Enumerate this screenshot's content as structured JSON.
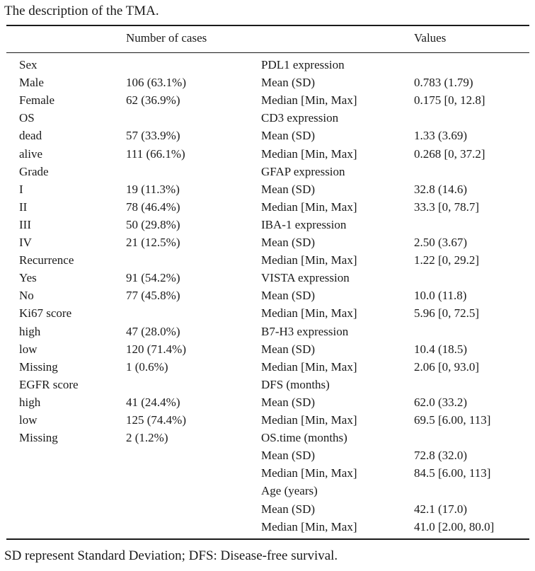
{
  "caption": "The description of the TMA.",
  "header": {
    "col_cases": "Number of cases",
    "col_values": "Values"
  },
  "rows": [
    {
      "label": "Sex",
      "cases": "",
      "label2": "PDL1 expression",
      "value": ""
    },
    {
      "label": "Male",
      "cases": "106 (63.1%)",
      "label2": "Mean (SD)",
      "value": "0.783 (1.79)"
    },
    {
      "label": "Female",
      "cases": "62 (36.9%)",
      "label2": "Median [Min, Max]",
      "value": "0.175 [0, 12.8]"
    },
    {
      "label": "OS",
      "cases": "",
      "label2": "CD3 expression",
      "value": ""
    },
    {
      "label": "dead",
      "cases": "57 (33.9%)",
      "label2": "Mean (SD)",
      "value": "1.33 (3.69)"
    },
    {
      "label": "alive",
      "cases": "111 (66.1%)",
      "label2": "Median [Min, Max]",
      "value": "0.268 [0, 37.2]"
    },
    {
      "label": "Grade",
      "cases": "",
      "label2": "GFAP expression",
      "value": ""
    },
    {
      "label": "I",
      "cases": "19 (11.3%)",
      "label2": "Mean (SD)",
      "value": "32.8 (14.6)"
    },
    {
      "label": "II",
      "cases": "78 (46.4%)",
      "label2": "Median [Min, Max]",
      "value": "33.3 [0, 78.7]"
    },
    {
      "label": "III",
      "cases": "50 (29.8%)",
      "label2": "IBA-1 expression",
      "value": ""
    },
    {
      "label": "IV",
      "cases": "21 (12.5%)",
      "label2": "Mean (SD)",
      "value": "2.50 (3.67)"
    },
    {
      "label": "Recurrence",
      "cases": "",
      "label2": "Median [Min, Max]",
      "value": "1.22 [0, 29.2]"
    },
    {
      "label": "Yes",
      "cases": "91 (54.2%)",
      "label2": "VISTA expression",
      "value": ""
    },
    {
      "label": "No",
      "cases": "77 (45.8%)",
      "label2": "Mean (SD)",
      "value": "10.0 (11.8)"
    },
    {
      "label": "Ki67 score",
      "cases": "",
      "label2": "Median [Min, Max]",
      "value": "5.96 [0, 72.5]"
    },
    {
      "label": "high",
      "cases": "47 (28.0%)",
      "label2": "B7-H3 expression",
      "value": ""
    },
    {
      "label": "low",
      "cases": "120 (71.4%)",
      "label2": "Mean (SD)",
      "value": "10.4 (18.5)"
    },
    {
      "label": "Missing",
      "cases": "1 (0.6%)",
      "label2": "Median [Min, Max]",
      "value": "2.06 [0, 93.0]"
    },
    {
      "label": "EGFR score",
      "cases": "",
      "label2": "DFS (months)",
      "value": ""
    },
    {
      "label": "high",
      "cases": "41 (24.4%)",
      "label2": "Mean (SD)",
      "value": "62.0 (33.2)"
    },
    {
      "label": "low",
      "cases": "125 (74.4%)",
      "label2": "Median [Min, Max]",
      "value": "69.5 [6.00, 113]"
    },
    {
      "label": "Missing",
      "cases": "2 (1.2%)",
      "label2": "OS.time (months)",
      "value": ""
    },
    {
      "label": "",
      "cases": "",
      "label2": "Mean (SD)",
      "value": "72.8 (32.0)"
    },
    {
      "label": "",
      "cases": "",
      "label2": "Median [Min, Max]",
      "value": "84.5 [6.00, 113]"
    },
    {
      "label": "",
      "cases": "",
      "label2": "Age (years)",
      "value": ""
    },
    {
      "label": "",
      "cases": "",
      "label2": "Mean (SD)",
      "value": "42.1 (17.0)"
    },
    {
      "label": "",
      "cases": "",
      "label2": "Median [Min, Max]",
      "value": "41.0 [2.00, 80.0]"
    }
  ],
  "footnote": "SD represent Standard Deviation; DFS: Disease-free survival."
}
